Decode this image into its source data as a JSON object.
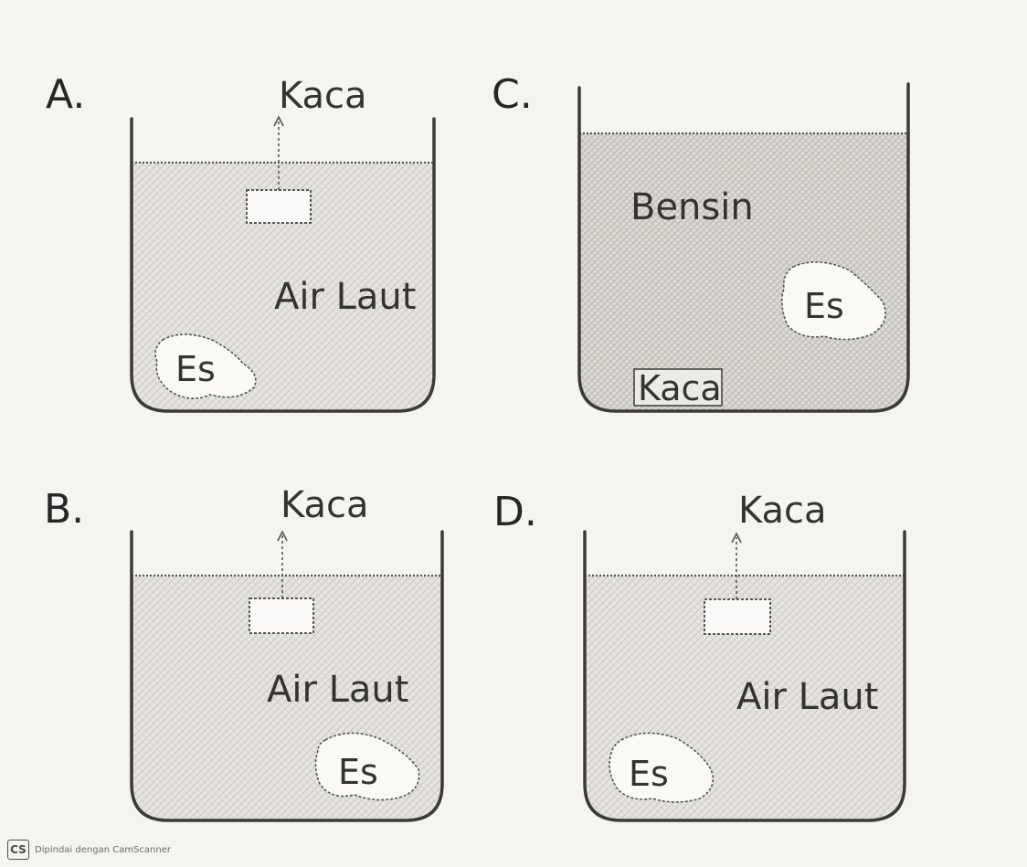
{
  "options": [
    {
      "letter": "A.",
      "glass_label": "Kaca",
      "liquid_label": "Air Laut",
      "ice_label": "Es"
    },
    {
      "letter": "C.",
      "liquid_label": "Bensin",
      "ice_label": "Es",
      "glass_label": "Kaca"
    },
    {
      "letter": "B.",
      "glass_label": "Kaca",
      "liquid_label": "Air Laut",
      "ice_label": "Es"
    },
    {
      "letter": "D.",
      "glass_label": "Kaca",
      "liquid_label": "Air Laut",
      "ice_label": "Es"
    }
  ],
  "footer": {
    "logo": "CS",
    "text": "Dipindai dengan CamScanner"
  }
}
